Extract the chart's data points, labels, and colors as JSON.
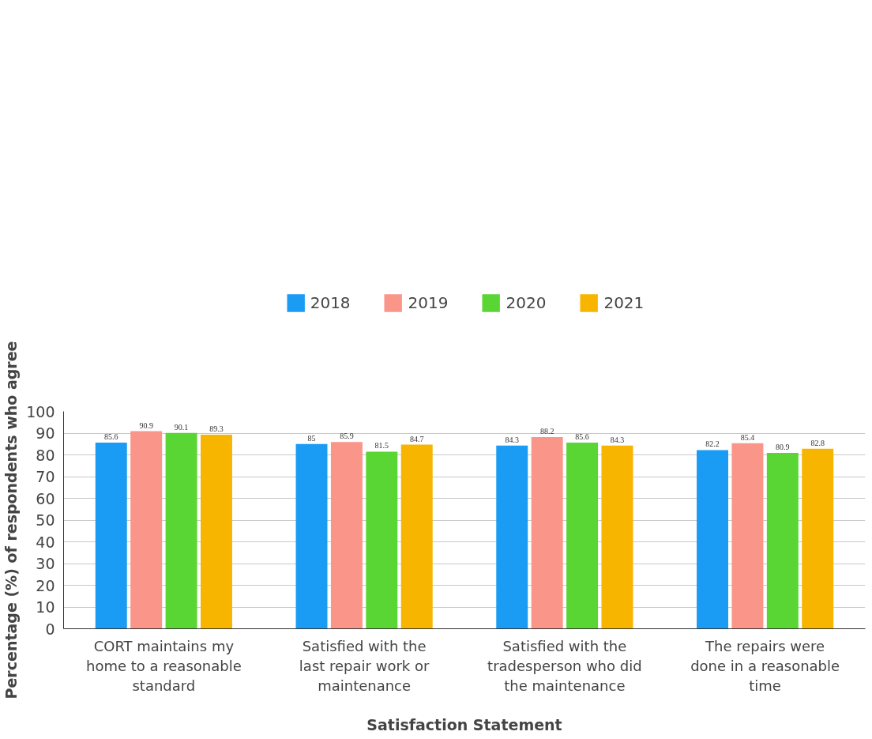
{
  "chart_data": {
    "type": "bar",
    "xlabel": "Satisfaction Statement",
    "ylabel": "Percentage (%) of respondents who agree",
    "categories": [
      "CORT maintains my home to a reasonable standard",
      "Satisfied with the last repair work or maintenance",
      "Satisfied with the tradesperson who did the maintenance",
      "The repairs were done in a reasonable time"
    ],
    "series": [
      {
        "name": "2018",
        "color": "#1a9cf5",
        "values": [
          85.6,
          85,
          84.3,
          82.2
        ]
      },
      {
        "name": "2019",
        "color": "#fa958a",
        "values": [
          90.9,
          85.9,
          88.2,
          85.4
        ]
      },
      {
        "name": "2020",
        "color": "#5ad634",
        "values": [
          90.1,
          81.5,
          85.6,
          80.9
        ]
      },
      {
        "name": "2021",
        "color": "#f8b500",
        "values": [
          89.3,
          84.7,
          84.3,
          82.8
        ]
      }
    ],
    "ylim": [
      0,
      100
    ],
    "yticks": [
      0,
      10,
      20,
      30,
      40,
      50,
      60,
      70,
      80,
      90,
      100
    ],
    "grid": "y",
    "legend": "top",
    "data_labels": true
  }
}
